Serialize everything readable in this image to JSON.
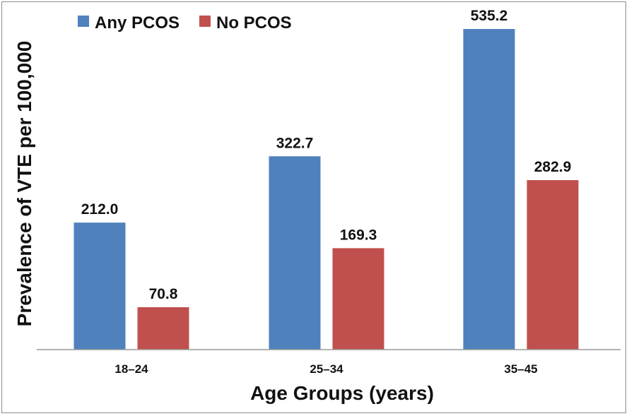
{
  "chart_data": {
    "type": "bar",
    "categories": [
      "18–24",
      "25–34",
      "35–45"
    ],
    "series": [
      {
        "name": "Any PCOS",
        "values": [
          212.0,
          322.7,
          535.2
        ],
        "color": "#4f81bd"
      },
      {
        "name": "No PCOS",
        "values": [
          70.8,
          169.3,
          282.9
        ],
        "color": "#c0504d"
      }
    ],
    "xlabel": "Age Groups (years)",
    "ylabel": "Prevalence of VTE per 100,000",
    "ylim": [
      0,
      560
    ],
    "grid": false,
    "legend": "top-left",
    "data_labels": true
  }
}
